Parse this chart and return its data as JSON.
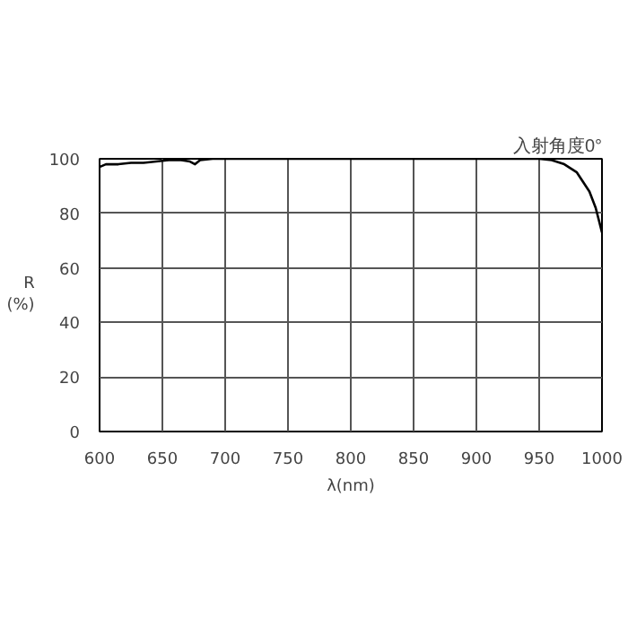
{
  "chart_data": {
    "type": "line",
    "xlabel": "λ(nm)",
    "ylabel": "R\n(%)",
    "annotations": [
      "入射角度0°"
    ],
    "x": [
      600,
      605,
      615,
      625,
      635,
      645,
      655,
      665,
      672,
      676,
      680,
      690,
      700,
      750,
      800,
      850,
      900,
      950,
      960,
      970,
      980,
      990,
      995,
      1000
    ],
    "series": [
      {
        "color": "#000000",
        "values": [
          97,
          98,
          98,
          98.5,
          98.5,
          99,
          99.5,
          99.5,
          99,
          98,
          99.5,
          100,
          100,
          100,
          100,
          100,
          100,
          100,
          99.5,
          98,
          95,
          88,
          82,
          73
        ]
      }
    ],
    "xlim": [
      600,
      1000
    ],
    "ylim": [
      0,
      100
    ],
    "xticks": [
      600,
      650,
      700,
      750,
      800,
      850,
      900,
      950,
      1000
    ],
    "yticks": [
      0,
      20,
      40,
      60,
      80,
      100
    ],
    "grid": true,
    "marker": "none",
    "line_style": "solid"
  }
}
